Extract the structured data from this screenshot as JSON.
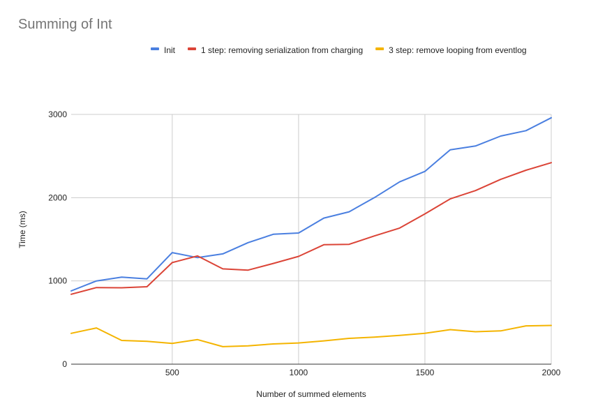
{
  "chart_data": {
    "type": "line",
    "title": "Summing of Int",
    "xlabel": "Number of summed elements",
    "ylabel": "Time (ms)",
    "xlim": [
      100,
      2000
    ],
    "ylim": [
      0,
      3000
    ],
    "x_ticks": [
      500,
      1000,
      1500,
      2000
    ],
    "y_ticks": [
      0,
      1000,
      2000,
      3000
    ],
    "grid": true,
    "legend_position": "top",
    "x": [
      100,
      200,
      300,
      400,
      500,
      600,
      700,
      800,
      900,
      1000,
      1100,
      1200,
      1300,
      1400,
      1500,
      1600,
      1700,
      1800,
      1900,
      2000
    ],
    "series": [
      {
        "name": "Init",
        "color": "#4a7fe0",
        "values": [
          880,
          1000,
          1045,
          1025,
          1340,
          1280,
          1325,
          1460,
          1560,
          1575,
          1755,
          1830,
          2000,
          2190,
          2315,
          2575,
          2620,
          2740,
          2805,
          2960
        ]
      },
      {
        "name": "1 step: removing serialization from charging",
        "color": "#db4437",
        "values": [
          840,
          920,
          918,
          930,
          1220,
          1300,
          1145,
          1130,
          1210,
          1295,
          1435,
          1440,
          1540,
          1635,
          1805,
          1985,
          2085,
          2220,
          2330,
          2420
        ]
      },
      {
        "name": "3 step: remove looping from eventlog",
        "color": "#f4b400",
        "values": [
          370,
          435,
          285,
          275,
          250,
          295,
          210,
          220,
          243,
          255,
          280,
          310,
          325,
          345,
          370,
          415,
          390,
          400,
          460,
          465
        ]
      }
    ]
  }
}
